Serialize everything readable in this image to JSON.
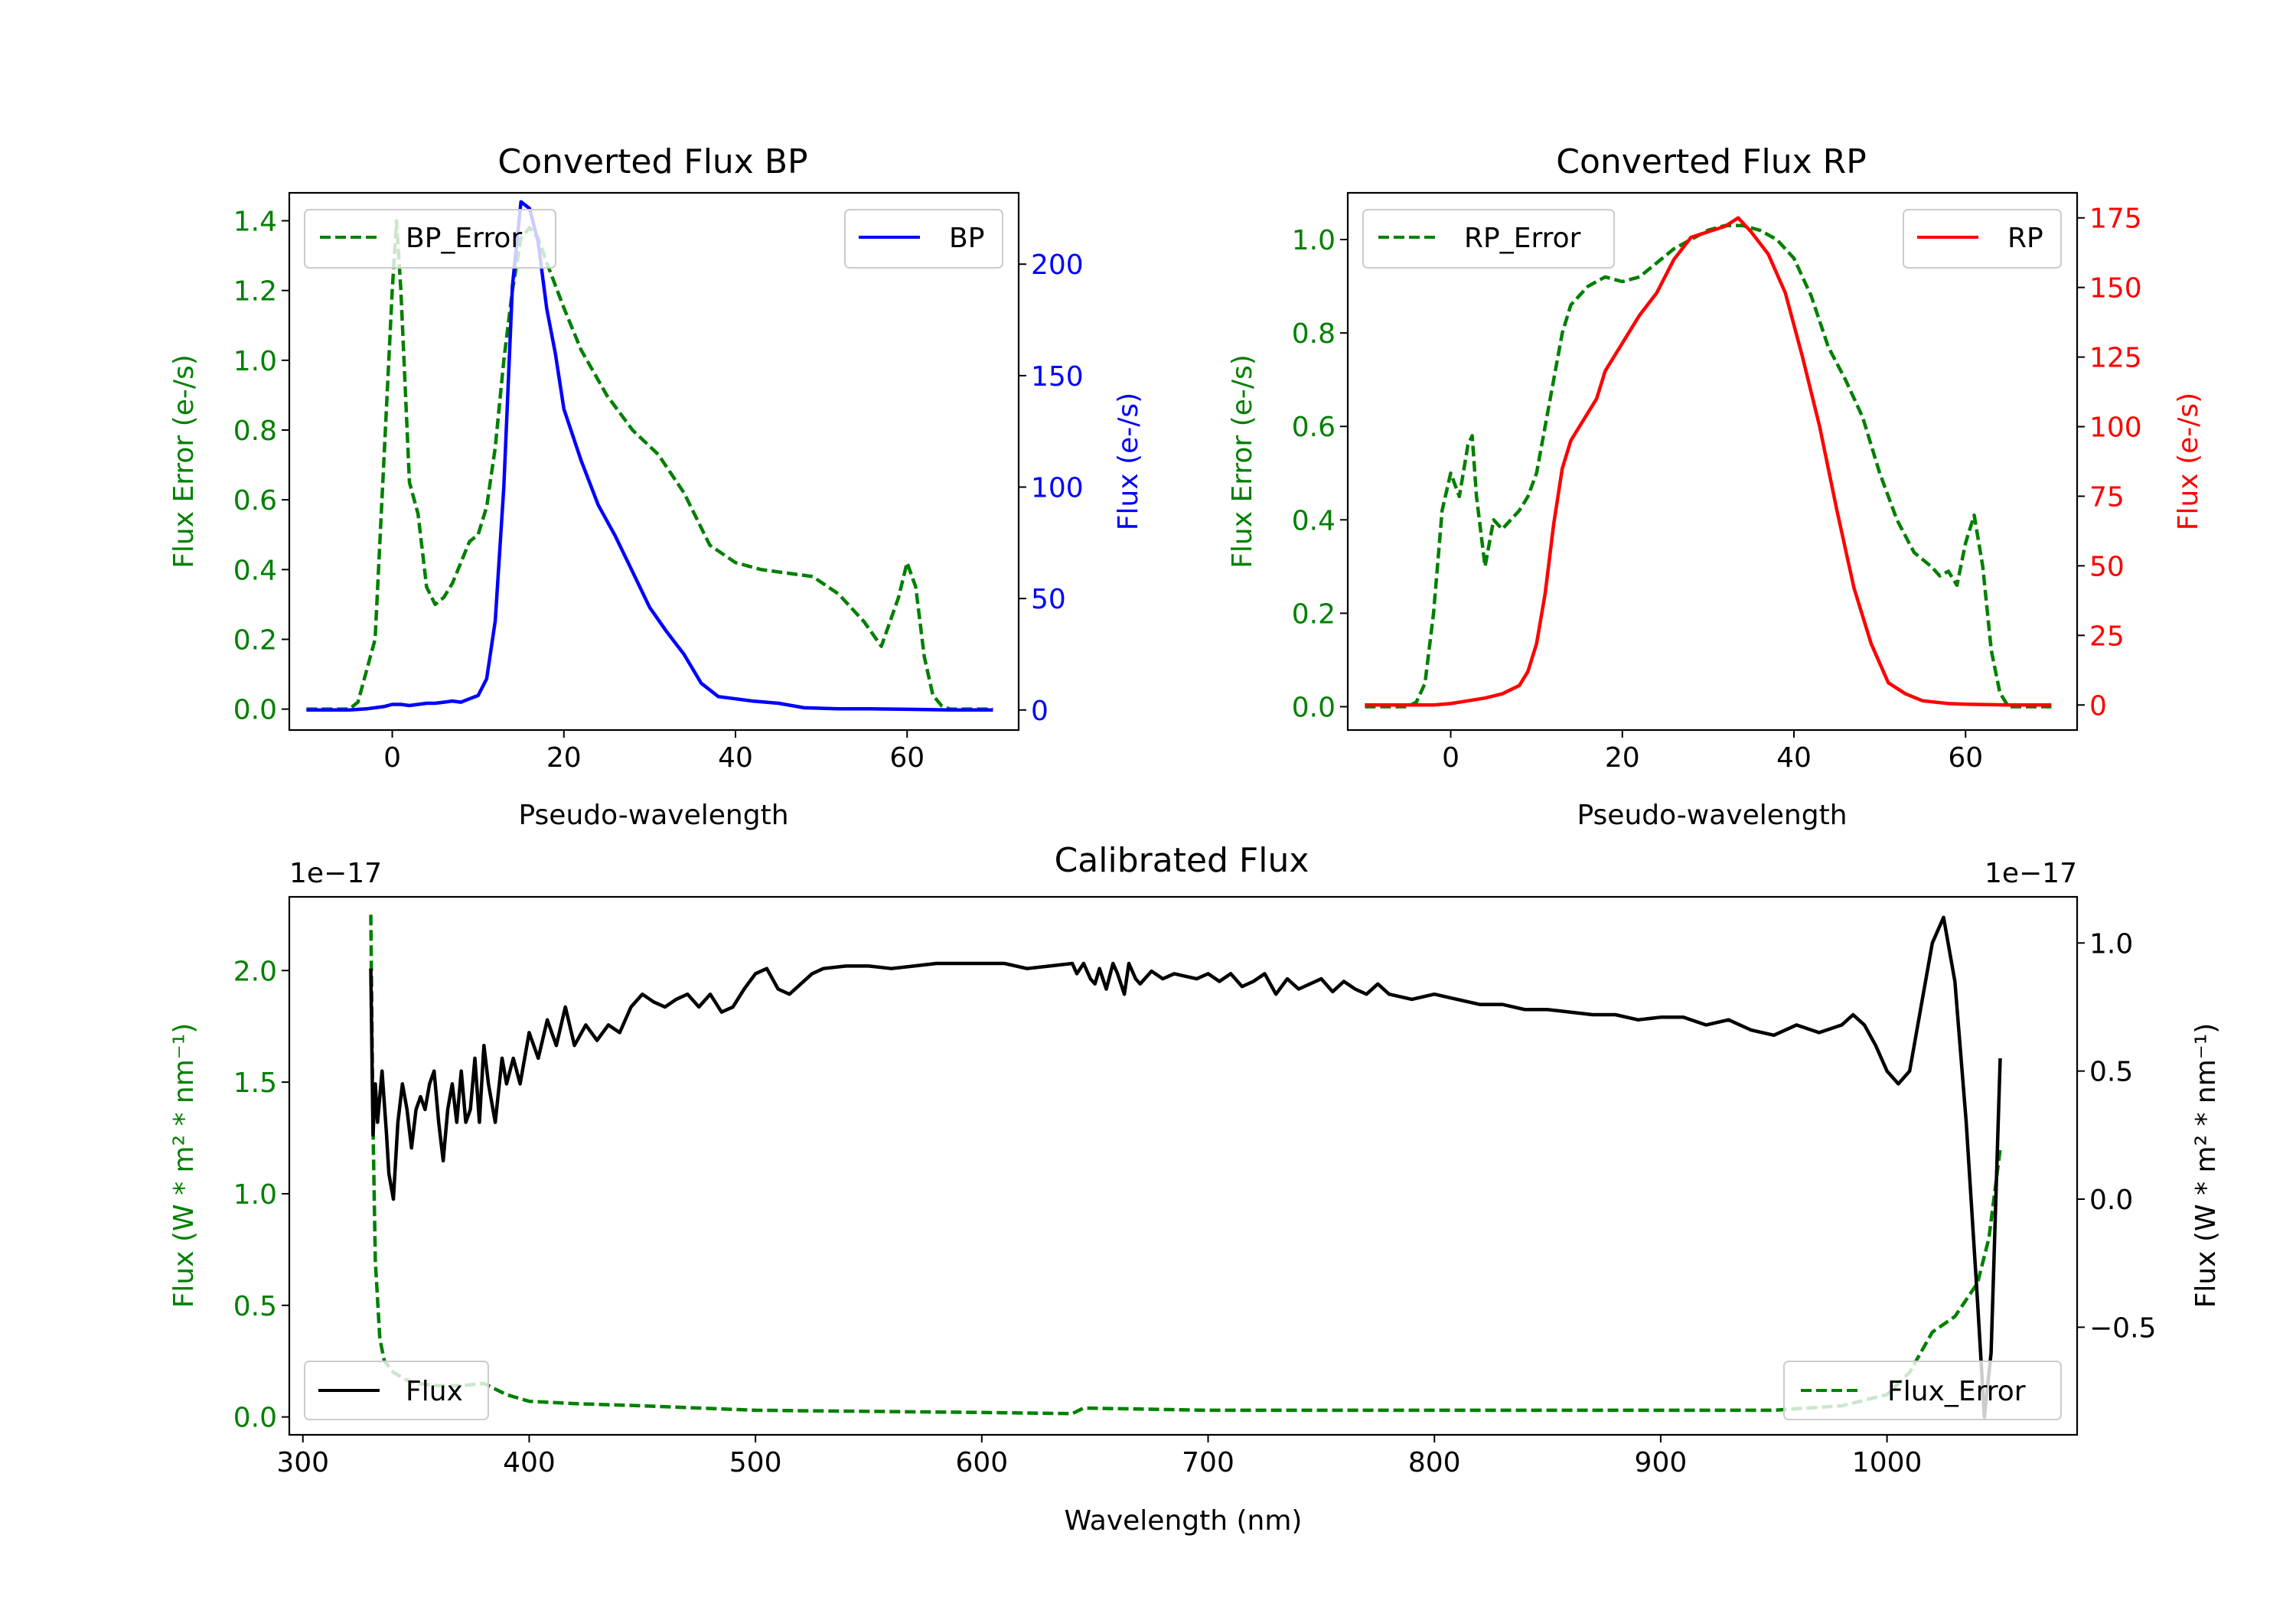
{
  "colors": {
    "bp": "#0000ff",
    "rp": "#ff0000",
    "error": "#008000",
    "flux": "#000000",
    "axis": "#000000"
  },
  "chart_data": [
    {
      "type": "line",
      "title": "Converted Flux BP",
      "xlabel": "Pseudo-wavelength",
      "xlim": [
        -12,
        73
      ],
      "xticks": [
        0,
        20,
        40,
        60
      ],
      "left_axis": {
        "label": "Flux Error (e-/s)",
        "color": "#008000",
        "ylim": [
          -0.06,
          1.48
        ],
        "ticks": [
          0.0,
          0.2,
          0.4,
          0.6,
          0.8,
          1.0,
          1.2,
          1.4
        ],
        "tick_labels": [
          "0.0",
          "0.2",
          "0.4",
          "0.6",
          "0.8",
          "1.0",
          "1.2",
          "1.4"
        ]
      },
      "right_axis": {
        "label": "Flux (e-/s)",
        "color": "#0000ff",
        "ylim": [
          -9,
          232
        ],
        "ticks": [
          0,
          50,
          100,
          150,
          200
        ],
        "tick_labels": [
          "0",
          "50",
          "100",
          "150",
          "200"
        ]
      },
      "legend_left": {
        "label": "BP_Error",
        "location": "upper left"
      },
      "legend_right": {
        "label": "BP",
        "location": "upper right"
      },
      "series": [
        {
          "name": "BP_Error",
          "axis": "left",
          "style": "dashed",
          "color": "#008000",
          "x": [
            -10,
            -5,
            -4,
            -2,
            -1,
            0,
            0.5,
            1,
            2,
            3,
            4,
            5,
            6,
            7,
            8,
            9,
            10,
            11,
            12,
            13,
            14,
            15,
            16,
            17,
            18,
            20,
            22,
            25,
            28,
            31,
            34,
            37,
            40,
            43,
            46,
            49,
            52,
            55,
            57,
            58,
            59,
            60,
            61,
            62,
            63,
            64,
            65,
            70
          ],
          "y": [
            0.0,
            0.0,
            0.02,
            0.2,
            0.7,
            1.2,
            1.4,
            1.2,
            0.65,
            0.56,
            0.35,
            0.3,
            0.32,
            0.36,
            0.42,
            0.48,
            0.5,
            0.58,
            0.75,
            1.0,
            1.2,
            1.35,
            1.38,
            1.35,
            1.28,
            1.15,
            1.03,
            0.9,
            0.8,
            0.73,
            0.62,
            0.47,
            0.42,
            0.4,
            0.39,
            0.38,
            0.33,
            0.25,
            0.18,
            0.25,
            0.32,
            0.42,
            0.35,
            0.15,
            0.04,
            0.01,
            0.0,
            0.0
          ]
        },
        {
          "name": "BP",
          "axis": "right",
          "style": "solid",
          "color": "#0000ff",
          "x": [
            -10,
            -5,
            -3,
            -1,
            0,
            1,
            2,
            3,
            4,
            5,
            6,
            7,
            8,
            9,
            10,
            11,
            12,
            13,
            14,
            15,
            16,
            17,
            18,
            19,
            20,
            22,
            24,
            26,
            28,
            30,
            32,
            34,
            36,
            38,
            40,
            42,
            45,
            48,
            52,
            56,
            60,
            65,
            70
          ],
          "y": [
            0,
            0,
            0.5,
            1.5,
            2.5,
            2.5,
            2,
            2.5,
            3,
            3,
            3.5,
            4,
            3.5,
            5,
            6.5,
            14,
            40,
            100,
            190,
            228,
            225,
            210,
            180,
            160,
            135,
            112,
            92,
            78,
            62,
            46,
            35,
            25,
            12,
            6,
            5,
            4,
            3,
            1,
            0.5,
            0.5,
            0.3,
            0,
            0
          ]
        }
      ]
    },
    {
      "type": "line",
      "title": "Converted Flux RP",
      "xlabel": "Pseudo-wavelength",
      "xlim": [
        -12,
        73
      ],
      "xticks": [
        0,
        20,
        40,
        60
      ],
      "left_axis": {
        "label": "Flux Error (e-/s)",
        "color": "#008000",
        "ylim": [
          -0.05,
          1.1
        ],
        "ticks": [
          0.0,
          0.2,
          0.4,
          0.6,
          0.8,
          1.0
        ],
        "tick_labels": [
          "0.0",
          "0.2",
          "0.4",
          "0.6",
          "0.8",
          "1.0"
        ]
      },
      "right_axis": {
        "label": "Flux (e-/s)",
        "color": "#ff0000",
        "ylim": [
          -9,
          184
        ],
        "ticks": [
          0,
          25,
          50,
          75,
          100,
          125,
          150,
          175
        ],
        "tick_labels": [
          "0",
          "25",
          "50",
          "75",
          "100",
          "125",
          "150",
          "175"
        ]
      },
      "legend_left": {
        "label": "RP_Error",
        "location": "upper left"
      },
      "legend_right": {
        "label": "RP",
        "location": "upper right"
      },
      "series": [
        {
          "name": "RP_Error",
          "axis": "left",
          "style": "dashed",
          "color": "#008000",
          "x": [
            -10,
            -5,
            -4,
            -3,
            -2,
            -1,
            0,
            1,
            2,
            2.5,
            3,
            4,
            5,
            6,
            7,
            8,
            9,
            10,
            11,
            12,
            13,
            14,
            15,
            16,
            17,
            18,
            20,
            22,
            24,
            26,
            28,
            30,
            32,
            34,
            36,
            38,
            40,
            42,
            44,
            46,
            48,
            50,
            52,
            54,
            56,
            57,
            58,
            59,
            60,
            61,
            62,
            63,
            64,
            65,
            70
          ],
          "y": [
            0.0,
            0.0,
            0.01,
            0.05,
            0.2,
            0.42,
            0.5,
            0.45,
            0.56,
            0.58,
            0.45,
            0.3,
            0.4,
            0.38,
            0.4,
            0.42,
            0.45,
            0.5,
            0.6,
            0.7,
            0.8,
            0.86,
            0.88,
            0.9,
            0.91,
            0.92,
            0.91,
            0.92,
            0.95,
            0.98,
            1.0,
            1.02,
            1.03,
            1.03,
            1.02,
            1.0,
            0.96,
            0.88,
            0.77,
            0.7,
            0.62,
            0.5,
            0.4,
            0.33,
            0.3,
            0.28,
            0.29,
            0.26,
            0.35,
            0.41,
            0.3,
            0.12,
            0.03,
            0.0,
            0.0
          ]
        },
        {
          "name": "RP",
          "axis": "right",
          "style": "solid",
          "color": "#ff0000",
          "x": [
            -10,
            -5,
            -2,
            0,
            2,
            4,
            6,
            8,
            9,
            10,
            11,
            12,
            13,
            14,
            15,
            16,
            17,
            18,
            19,
            20,
            21,
            22,
            24,
            26,
            28,
            30,
            32,
            33.5,
            35,
            37,
            39,
            41,
            43,
            45,
            47,
            49,
            51,
            53,
            55,
            58,
            60,
            65,
            70
          ],
          "y": [
            0,
            0,
            0,
            0.5,
            1.5,
            2.5,
            4,
            7,
            12,
            22,
            40,
            65,
            85,
            95,
            100,
            105,
            110,
            120,
            125,
            130,
            135,
            140,
            148,
            160,
            168,
            170,
            172,
            175,
            170,
            162,
            148,
            125,
            100,
            70,
            42,
            22,
            8,
            4,
            1.5,
            0.5,
            0.3,
            0,
            0
          ]
        }
      ]
    },
    {
      "type": "line",
      "title": "Calibrated Flux",
      "xlabel": "Wavelength (nm)",
      "xlim": [
        294,
        1084
      ],
      "xticks": [
        300,
        400,
        500,
        600,
        700,
        800,
        900,
        1000
      ],
      "left_axis": {
        "label": "Flux (W * m² * nm⁻¹)",
        "color": "#008000",
        "offset_text": "1e−17",
        "ylim": [
          -0.08,
          2.33
        ],
        "ticks": [
          0.0,
          0.5,
          1.0,
          1.5,
          2.0
        ],
        "tick_labels": [
          "0.0",
          "0.5",
          "1.0",
          "1.5",
          "2.0"
        ]
      },
      "right_axis": {
        "label": "Flux (W * m² * nm⁻¹)",
        "color": "#000000",
        "offset_text": "1e−17",
        "ylim": [
          -0.92,
          1.18
        ],
        "ticks": [
          -0.5,
          0.0,
          0.5,
          1.0
        ],
        "tick_labels": [
          "−0.5",
          "0.0",
          "0.5",
          "1.0"
        ]
      },
      "legend_left": {
        "label": "Flux",
        "location": "lower left"
      },
      "legend_right": {
        "label": "Flux_Error",
        "location": "lower right"
      },
      "series": [
        {
          "name": "Flux_Error",
          "axis": "left",
          "style": "dashed",
          "color": "#008000",
          "x": [
            330,
            331,
            332,
            334,
            336,
            340,
            345,
            350,
            360,
            370,
            380,
            390,
            400,
            420,
            450,
            500,
            600,
            640,
            645,
            700,
            800,
            900,
            950,
            980,
            1000,
            1010,
            1020,
            1030,
            1040,
            1045,
            1050
          ],
          "y": [
            2.25,
            1.3,
            0.7,
            0.35,
            0.25,
            0.2,
            0.17,
            0.15,
            0.14,
            0.14,
            0.15,
            0.1,
            0.07,
            0.06,
            0.05,
            0.03,
            0.02,
            0.015,
            0.04,
            0.03,
            0.03,
            0.03,
            0.03,
            0.05,
            0.1,
            0.2,
            0.38,
            0.45,
            0.6,
            0.8,
            1.2
          ]
        },
        {
          "name": "Flux",
          "axis": "right",
          "style": "solid",
          "color": "#000000",
          "x": [
            330,
            331,
            332,
            333,
            335,
            337,
            338,
            340,
            342,
            344,
            346,
            348,
            350,
            352,
            354,
            356,
            358,
            360,
            362,
            364,
            366,
            368,
            370,
            372,
            374,
            376,
            378,
            380,
            382,
            385,
            388,
            390,
            393,
            396,
            400,
            404,
            408,
            412,
            416,
            420,
            425,
            430,
            435,
            440,
            445,
            450,
            455,
            460,
            465,
            470,
            475,
            480,
            485,
            490,
            495,
            500,
            505,
            510,
            515,
            520,
            525,
            530,
            540,
            550,
            560,
            570,
            580,
            590,
            600,
            610,
            620,
            630,
            640,
            642,
            645,
            648,
            650,
            652,
            655,
            658,
            660,
            663,
            665,
            668,
            670,
            675,
            680,
            685,
            690,
            695,
            700,
            705,
            710,
            715,
            720,
            725,
            730,
            735,
            740,
            745,
            750,
            755,
            760,
            765,
            770,
            775,
            780,
            790,
            800,
            810,
            820,
            830,
            840,
            850,
            860,
            870,
            880,
            890,
            900,
            910,
            920,
            930,
            940,
            950,
            960,
            970,
            980,
            985,
            990,
            995,
            1000,
            1005,
            1010,
            1015,
            1020,
            1025,
            1030,
            1035,
            1040,
            1043,
            1046,
            1050
          ],
          "y": [
            0.9,
            0.25,
            0.45,
            0.3,
            0.5,
            0.25,
            0.1,
            0.0,
            0.3,
            0.45,
            0.35,
            0.2,
            0.35,
            0.4,
            0.35,
            0.45,
            0.5,
            0.3,
            0.15,
            0.35,
            0.45,
            0.3,
            0.5,
            0.3,
            0.35,
            0.55,
            0.3,
            0.6,
            0.45,
            0.3,
            0.55,
            0.45,
            0.55,
            0.45,
            0.65,
            0.55,
            0.7,
            0.6,
            0.75,
            0.6,
            0.68,
            0.62,
            0.68,
            0.65,
            0.75,
            0.8,
            0.77,
            0.75,
            0.78,
            0.8,
            0.75,
            0.8,
            0.73,
            0.75,
            0.82,
            0.88,
            0.9,
            0.82,
            0.8,
            0.84,
            0.88,
            0.9,
            0.91,
            0.91,
            0.9,
            0.91,
            0.92,
            0.92,
            0.92,
            0.92,
            0.9,
            0.91,
            0.92,
            0.88,
            0.92,
            0.86,
            0.84,
            0.9,
            0.82,
            0.92,
            0.88,
            0.8,
            0.92,
            0.86,
            0.84,
            0.89,
            0.86,
            0.88,
            0.87,
            0.86,
            0.88,
            0.85,
            0.88,
            0.83,
            0.85,
            0.88,
            0.8,
            0.86,
            0.82,
            0.84,
            0.86,
            0.81,
            0.85,
            0.82,
            0.8,
            0.84,
            0.8,
            0.78,
            0.8,
            0.78,
            0.76,
            0.76,
            0.74,
            0.74,
            0.73,
            0.72,
            0.72,
            0.7,
            0.71,
            0.71,
            0.68,
            0.7,
            0.66,
            0.64,
            0.68,
            0.65,
            0.68,
            0.72,
            0.68,
            0.6,
            0.5,
            0.45,
            0.5,
            0.75,
            1.0,
            1.1,
            0.85,
            0.3,
            -0.4,
            -0.85,
            -0.6,
            0.55
          ]
        }
      ]
    }
  ]
}
